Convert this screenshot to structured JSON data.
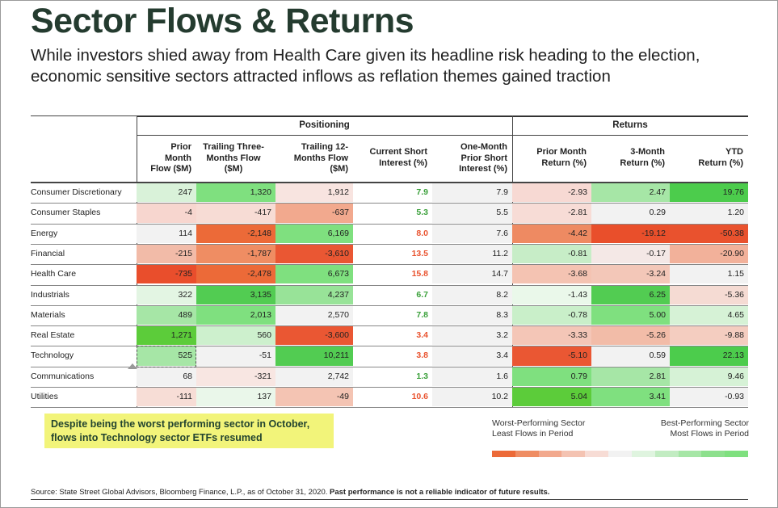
{
  "title": "Sector Flows & Returns",
  "subtitle": "While investors shied away from Health Care given its headline risk heading to the election, economic sensitive sectors attracted inflows as reflation themes gained traction",
  "groups": {
    "positioning": "Positioning",
    "returns": "Returns"
  },
  "columns": [
    "Prior Month Flow ($M)",
    "Trailing Three-Months Flow ($M)",
    "Trailing 12-Months Flow ($M)",
    "Current Short Interest (%)",
    "One-Month Prior Short Interest (%)",
    "Prior Month Return (%)",
    "3-Month Return (%)",
    "YTD Return (%)"
  ],
  "column_header_lines": [
    [
      "Prior",
      "Month",
      "Flow ($M)"
    ],
    [
      "Trailing Three-",
      "Months Flow",
      "($M)"
    ],
    [
      "Trailing 12-",
      "Months Flow",
      "($M)"
    ],
    [
      "Current Short",
      "Interest (%)"
    ],
    [
      "One-Month",
      "Prior Short",
      "Interest (%)"
    ],
    [
      "Prior Month",
      "Return (%)"
    ],
    [
      "3-Month",
      "Return (%)"
    ],
    [
      "YTD",
      "Return (%)"
    ]
  ],
  "chart_data": {
    "type": "table",
    "title": "Sector Flows & Returns",
    "rows": [
      {
        "sector": "Consumer Discretionary",
        "cells": [
          "247",
          "1,320",
          "1,912",
          "7.9",
          "7.9",
          "-2.93",
          "2.47",
          "19.76"
        ]
      },
      {
        "sector": "Consumer Staples",
        "cells": [
          "-4",
          "-417",
          "-637",
          "5.3",
          "5.5",
          "-2.81",
          "0.29",
          "1.20"
        ]
      },
      {
        "sector": "Energy",
        "cells": [
          "114",
          "-2,148",
          "6,169",
          "8.0",
          "7.6",
          "-4.42",
          "-19.12",
          "-50.38"
        ]
      },
      {
        "sector": "Financial",
        "cells": [
          "-215",
          "-1,787",
          "-3,610",
          "13.5",
          "11.2",
          "-0.81",
          "-0.17",
          "-20.90"
        ]
      },
      {
        "sector": "Health Care",
        "cells": [
          "-735",
          "-2,478",
          "6,673",
          "15.8",
          "14.7",
          "-3.68",
          "-3.24",
          "1.15"
        ]
      },
      {
        "sector": "Industrials",
        "cells": [
          "322",
          "3,135",
          "4,237",
          "6.7",
          "8.2",
          "-1.43",
          "6.25",
          "-5.36"
        ]
      },
      {
        "sector": "Materials",
        "cells": [
          "489",
          "2,013",
          "2,570",
          "7.8",
          "8.3",
          "-0.78",
          "5.00",
          "4.65"
        ]
      },
      {
        "sector": "Real Estate",
        "cells": [
          "1,271",
          "560",
          "-3,600",
          "3.4",
          "3.2",
          "-3.33",
          "-5.26",
          "-9.88"
        ]
      },
      {
        "sector": "Technology",
        "cells": [
          "525",
          "-51",
          "10,211",
          "3.8",
          "3.4",
          "-5.10",
          "0.59",
          "22.13"
        ]
      },
      {
        "sector": "Communications",
        "cells": [
          "68",
          "-321",
          "2,742",
          "1.3",
          "1.6",
          "0.79",
          "2.81",
          "9.46"
        ]
      },
      {
        "sector": "Utilities",
        "cells": [
          "-111",
          "137",
          "-49",
          "10.6",
          "10.2",
          "5.04",
          "3.41",
          "-0.93"
        ]
      }
    ],
    "cell_colors": [
      [
        "#d9f2d9",
        "#7fe07f",
        "#f8e4e0",
        "#ffffff",
        "#f2f2f2",
        "#f7d9d3",
        "#a6e6a6",
        "#4ccc4c"
      ],
      [
        "#f7d6cf",
        "#f7dcd5",
        "#f2a98e",
        "#ffffff",
        "#f2f2f2",
        "#f7dcd6",
        "#f2f2f2",
        "#f2f2f2"
      ],
      [
        "#f2f2f2",
        "#ec6a38",
        "#7fe07f",
        "#ffffff",
        "#f2f2f2",
        "#ee8a62",
        "#e94f2b",
        "#e9522e"
      ],
      [
        "#f2bba8",
        "#ef8d63",
        "#ea5733",
        "#ffffff",
        "#f2f2f2",
        "#c7edc7",
        "#f4e8e6",
        "#f2b19a"
      ],
      [
        "#e94e2c",
        "#ec6a38",
        "#7fe07f",
        "#ffffff",
        "#f2f2f2",
        "#f4c3b2",
        "#f3c7b8",
        "#f2f2f2"
      ],
      [
        "#e3f5e3",
        "#52cc52",
        "#98e398",
        "#ffffff",
        "#f2f2f2",
        "#eaf8ea",
        "#52cc52",
        "#f5dbd3"
      ],
      [
        "#a6e6a6",
        "#7fe07f",
        "#f2f2f2",
        "#ffffff",
        "#f2f2f2",
        "#c9efc9",
        "#7fe07f",
        "#d6f2d6"
      ],
      [
        "#5ccc3a",
        "#cdf0cd",
        "#ea5733",
        "#ffffff",
        "#f2f2f2",
        "#f4c6b7",
        "#f2bca8",
        "#f4cdc0"
      ],
      [
        "#a6e6a6",
        "#f2f2f2",
        "#52cc52",
        "#ffffff",
        "#f2f2f2",
        "#ea5733",
        "#f2f2f2",
        "#4ccc4c"
      ],
      [
        "#f2f2f2",
        "#f8e6e2",
        "#f2f2f2",
        "#ffffff",
        "#f2f2f2",
        "#7fe07f",
        "#a6e6a6",
        "#d6f2d6"
      ],
      [
        "#f7ddd6",
        "#eaf7ea",
        "#f4c4b3",
        "#ffffff",
        "#f2f2f2",
        "#5ccc3a",
        "#7fe07f",
        "#f2f2f2"
      ]
    ],
    "short_interest_colors": [
      "#3aa03a",
      "#3aa03a",
      "#e9522e",
      "#e9522e",
      "#e9522e",
      "#3aa03a",
      "#3aa03a",
      "#e9522e",
      "#e9522e",
      "#3aa03a",
      "#e9522e"
    ]
  },
  "callout": "Despite being the worst performing sector in October, flows into Technology sector ETFs resumed",
  "legend": {
    "left": [
      "Worst-Performing Sector",
      "Least Flows in Period"
    ],
    "right": [
      "Best-Performing Sector",
      "Most Flows in Period"
    ],
    "scale_colors": [
      "#ec6a38",
      "#ef8d63",
      "#f2a98e",
      "#f4c3b2",
      "#f7dcd5",
      "#f2f2f2",
      "#dff4df",
      "#c2ecc2",
      "#a6e6a6",
      "#8de08d",
      "#7fe07f"
    ]
  },
  "source": "Source: State Street Global Advisors, Bloomberg Finance, L.P., as of October 31, 2020.",
  "source_bold": "Past performance is not a reliable indicator of future results."
}
